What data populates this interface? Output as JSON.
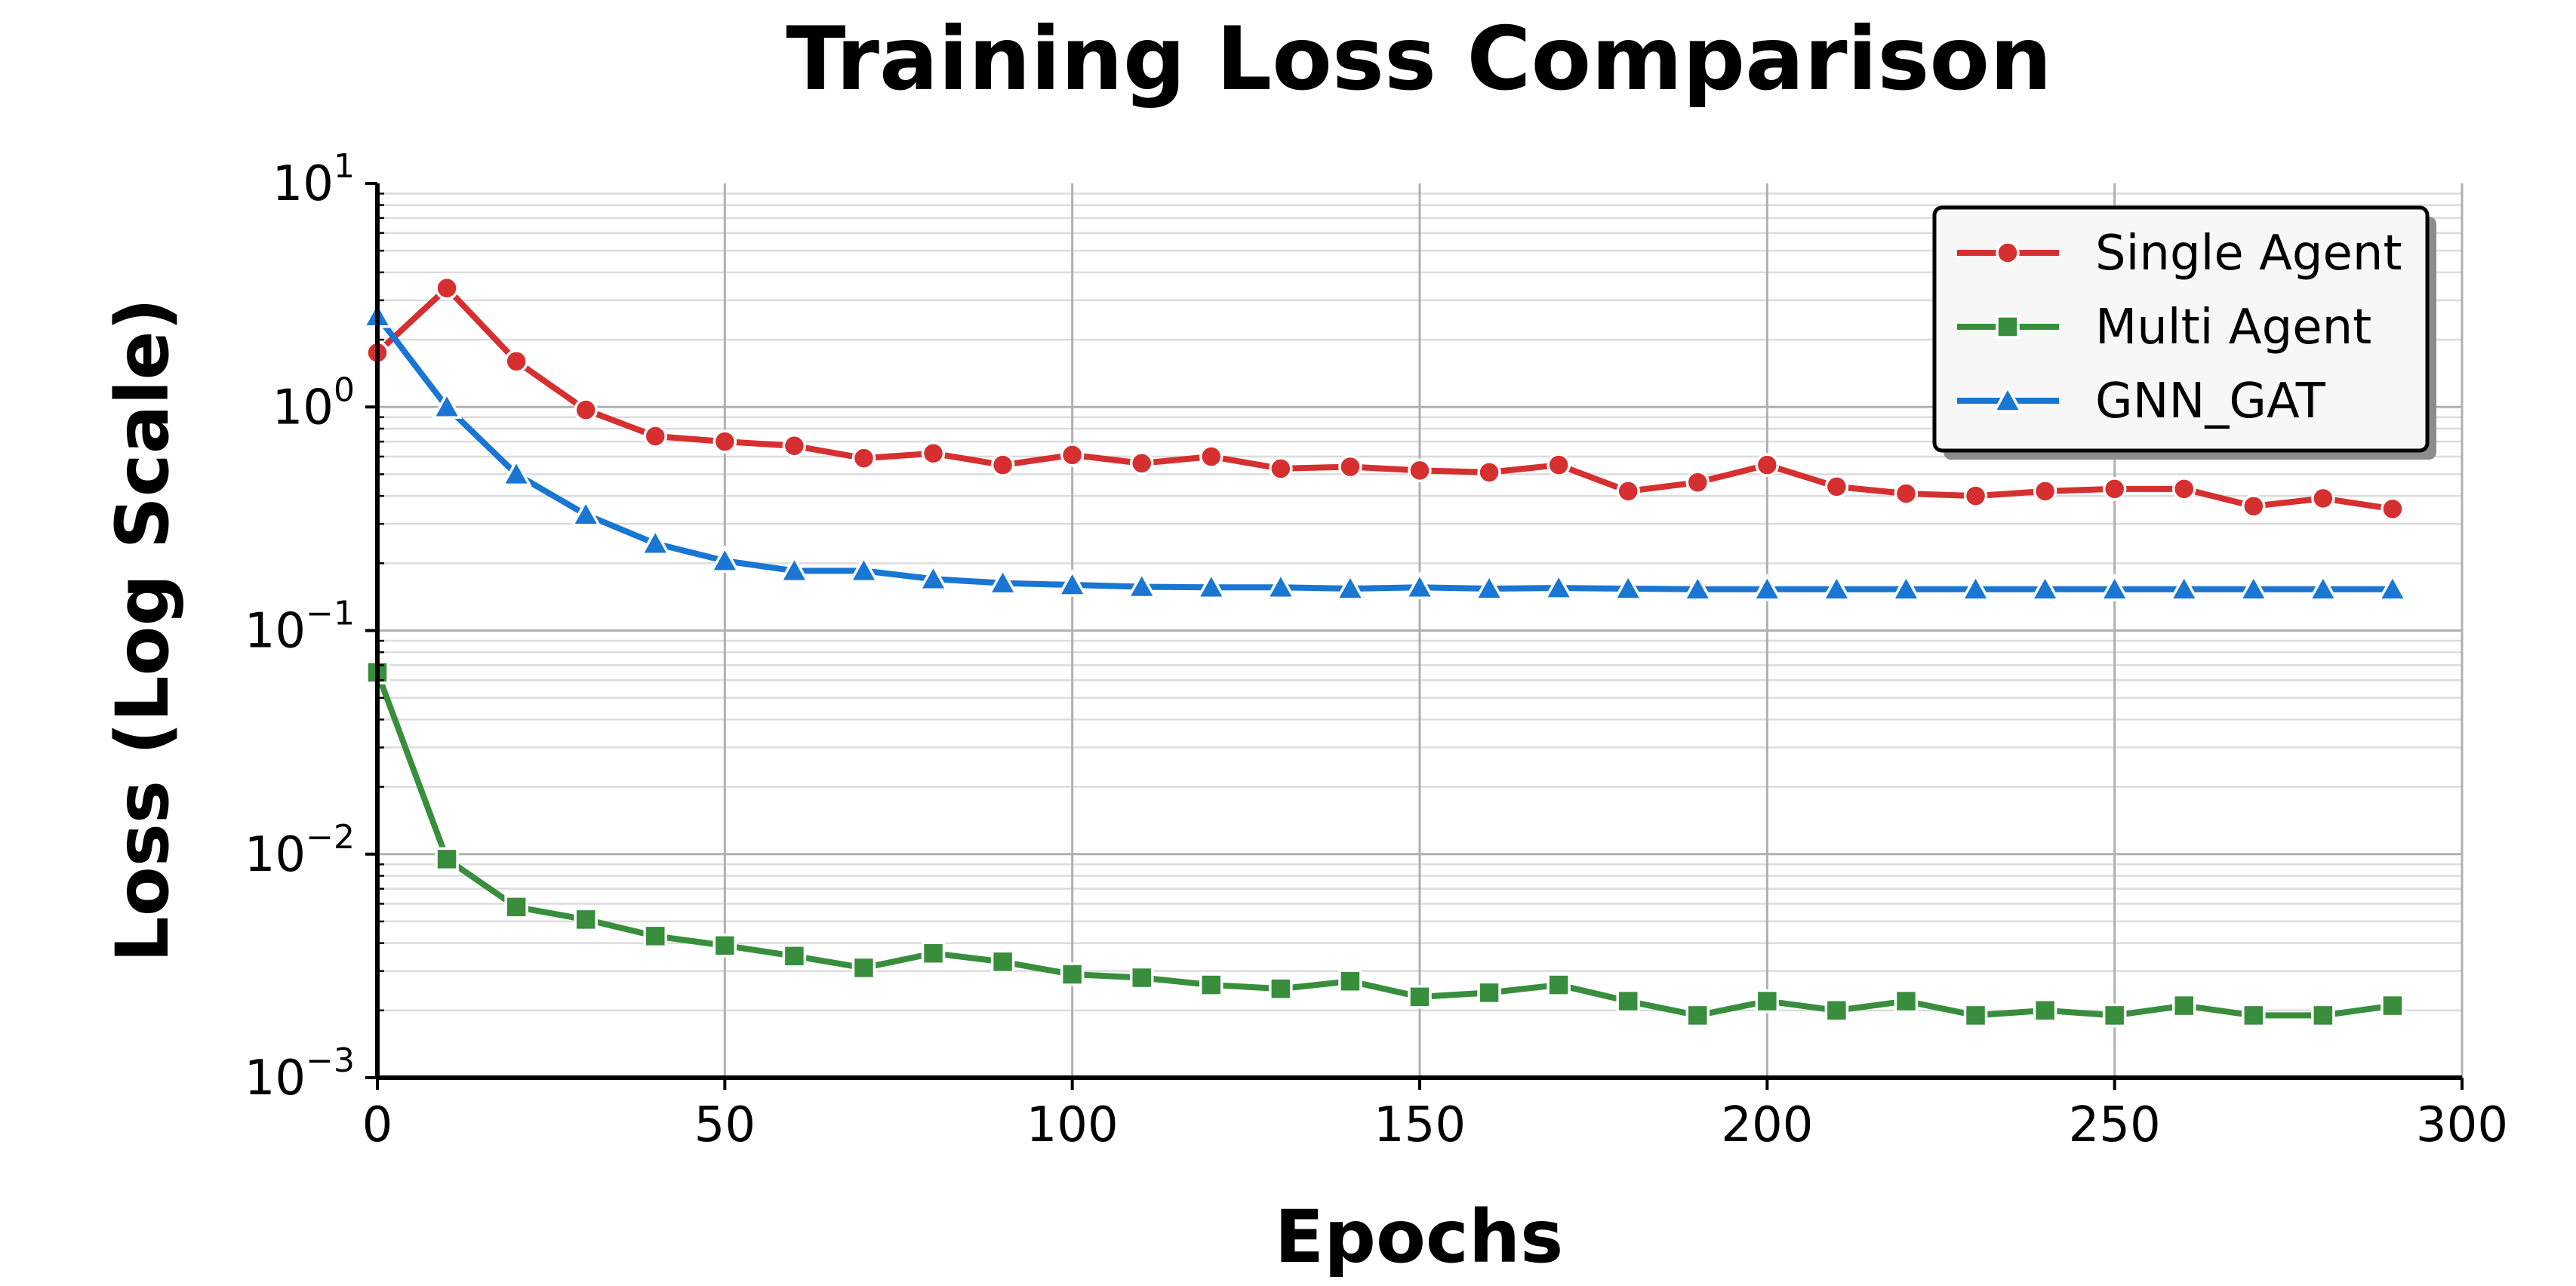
{
  "chart_data": {
    "type": "line",
    "title": "Training Loss Comparison",
    "xlabel": "Epochs",
    "ylabel": "Loss (Log Scale)",
    "xlim": [
      0,
      300
    ],
    "ylim": [
      0.001,
      10
    ],
    "yscale": "log",
    "grid": true,
    "legend_position": "top-right",
    "x_ticks": [
      "0",
      "50",
      "100",
      "150",
      "200",
      "250",
      "300"
    ],
    "y_ticks": [
      {
        "base": "10",
        "exp": "1"
      },
      {
        "base": "10",
        "exp": "0"
      },
      {
        "base": "10",
        "exp": "−1"
      },
      {
        "base": "10",
        "exp": "−2"
      },
      {
        "base": "10",
        "exp": "−3"
      }
    ],
    "x": [
      0,
      10,
      20,
      30,
      40,
      50,
      60,
      70,
      80,
      90,
      100,
      110,
      120,
      130,
      140,
      150,
      160,
      170,
      180,
      190,
      200,
      210,
      220,
      230,
      240,
      250,
      260,
      270,
      280,
      290
    ],
    "series": [
      {
        "name": "Single Agent",
        "color": "#d62f2f",
        "marker": "circle",
        "values": [
          1.75,
          3.4,
          1.6,
          0.97,
          0.74,
          0.7,
          0.67,
          0.59,
          0.62,
          0.55,
          0.61,
          0.56,
          0.6,
          0.53,
          0.54,
          0.52,
          0.51,
          0.55,
          0.42,
          0.46,
          0.55,
          0.44,
          0.41,
          0.4,
          0.42,
          0.43,
          0.43,
          0.36,
          0.39,
          0.35
        ]
      },
      {
        "name": "Multi Agent",
        "color": "#388e3c",
        "marker": "square",
        "values": [
          0.065,
          0.0095,
          0.0058,
          0.0051,
          0.0043,
          0.0039,
          0.0035,
          0.0031,
          0.0036,
          0.0033,
          0.0029,
          0.0028,
          0.0026,
          0.0025,
          0.0027,
          0.0023,
          0.0024,
          0.0026,
          0.0022,
          0.0019,
          0.0022,
          0.002,
          0.0022,
          0.0019,
          0.002,
          0.0019,
          0.0021,
          0.0019,
          0.0019,
          0.0021
        ]
      },
      {
        "name": "GNN_GAT",
        "color": "#1976d2",
        "marker": "triangle",
        "values": [
          2.55,
          1.0,
          0.5,
          0.33,
          0.245,
          0.205,
          0.185,
          0.185,
          0.17,
          0.163,
          0.16,
          0.157,
          0.156,
          0.156,
          0.154,
          0.156,
          0.154,
          0.155,
          0.154,
          0.153,
          0.153,
          0.153,
          0.153,
          0.153,
          0.153,
          0.153,
          0.153,
          0.153,
          0.153,
          0.153
        ]
      }
    ]
  }
}
